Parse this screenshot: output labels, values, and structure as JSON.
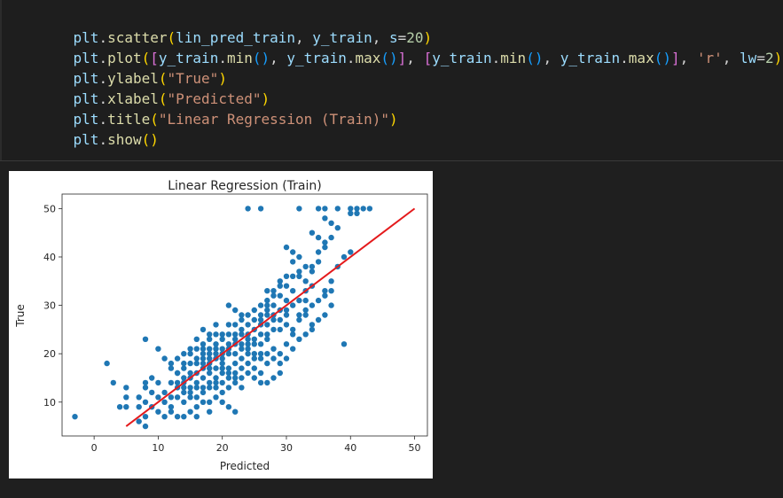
{
  "code_cell": {
    "lines": [
      "plt.scatter(lin_pred_train, y_train, s=20)",
      "plt.plot([y_train.min(), y_train.max()], [y_train.min(), y_train.max()], 'r', lw=2)",
      "plt.ylabel(\"True\")",
      "plt.xlabel(\"Predicted\")",
      "plt.title(\"Linear Regression (Train)\")",
      "plt.show()"
    ]
  },
  "chart_data": {
    "type": "scatter",
    "title": "Linear Regression (Train)",
    "xlabel": "Predicted",
    "ylabel": "True",
    "xlim": [
      -5,
      52
    ],
    "ylim": [
      3,
      53
    ],
    "xticks": [
      0,
      10,
      20,
      30,
      40,
      50
    ],
    "yticks": [
      10,
      20,
      30,
      40,
      50
    ],
    "grid": false,
    "series": [
      {
        "marker_color": "#1f77b4",
        "points": [
          [
            24,
            50
          ],
          [
            26,
            50
          ],
          [
            32,
            50
          ],
          [
            35,
            50
          ],
          [
            36,
            50
          ],
          [
            38,
            50
          ],
          [
            40,
            50
          ],
          [
            41,
            50
          ],
          [
            42,
            50
          ],
          [
            43,
            50
          ],
          [
            40,
            49
          ],
          [
            41,
            49
          ],
          [
            36,
            48
          ],
          [
            37,
            47
          ],
          [
            38,
            46
          ],
          [
            34,
            45
          ],
          [
            35,
            44
          ],
          [
            36,
            43
          ],
          [
            37,
            44
          ],
          [
            36,
            42
          ],
          [
            30,
            42
          ],
          [
            31,
            41
          ],
          [
            32,
            40
          ],
          [
            35,
            39
          ],
          [
            33,
            38
          ],
          [
            34,
            37
          ],
          [
            32,
            36
          ],
          [
            33,
            35
          ],
          [
            34,
            34
          ],
          [
            36,
            33
          ],
          [
            37,
            33
          ],
          [
            29,
            35
          ],
          [
            30,
            34
          ],
          [
            31,
            33
          ],
          [
            28,
            33
          ],
          [
            29,
            32
          ],
          [
            30,
            31
          ],
          [
            31,
            30
          ],
          [
            32,
            31
          ],
          [
            33,
            31
          ],
          [
            34,
            30
          ],
          [
            33,
            29
          ],
          [
            32,
            28
          ],
          [
            30,
            29
          ],
          [
            28,
            30
          ],
          [
            27,
            31
          ],
          [
            26,
            30
          ],
          [
            25,
            29
          ],
          [
            24,
            28
          ],
          [
            23,
            27
          ],
          [
            22,
            26
          ],
          [
            26,
            28
          ],
          [
            27,
            28
          ],
          [
            28,
            27
          ],
          [
            29,
            27
          ],
          [
            30,
            26
          ],
          [
            31,
            25
          ],
          [
            29,
            25
          ],
          [
            28,
            25
          ],
          [
            27,
            24
          ],
          [
            26,
            24
          ],
          [
            25,
            25
          ],
          [
            24,
            24
          ],
          [
            23,
            24
          ],
          [
            22,
            23
          ],
          [
            21,
            22
          ],
          [
            20,
            23
          ],
          [
            19,
            22
          ],
          [
            18,
            23
          ],
          [
            17,
            22
          ],
          [
            16,
            23
          ],
          [
            15,
            21
          ],
          [
            17,
            20
          ],
          [
            18,
            20
          ],
          [
            19,
            19
          ],
          [
            20,
            21
          ],
          [
            21,
            20
          ],
          [
            22,
            20
          ],
          [
            23,
            21
          ],
          [
            24,
            22
          ],
          [
            25,
            22
          ],
          [
            26,
            22
          ],
          [
            27,
            23
          ],
          [
            28,
            21
          ],
          [
            29,
            20
          ],
          [
            30,
            22
          ],
          [
            31,
            24
          ],
          [
            26,
            20
          ],
          [
            25,
            19
          ],
          [
            24,
            20
          ],
          [
            23,
            19
          ],
          [
            22,
            18
          ],
          [
            21,
            17
          ],
          [
            20,
            18
          ],
          [
            19,
            17
          ],
          [
            18,
            16
          ],
          [
            17,
            15
          ],
          [
            16,
            14
          ],
          [
            15,
            13
          ],
          [
            14,
            12
          ],
          [
            13,
            11
          ],
          [
            14,
            14
          ],
          [
            15,
            16
          ],
          [
            16,
            18
          ],
          [
            17,
            17
          ],
          [
            18,
            18
          ],
          [
            19,
            15
          ],
          [
            20,
            14
          ],
          [
            21,
            15
          ],
          [
            22,
            16
          ],
          [
            23,
            17
          ],
          [
            24,
            18
          ],
          [
            25,
            17
          ],
          [
            26,
            16
          ],
          [
            27,
            18
          ],
          [
            28,
            15
          ],
          [
            29,
            16
          ],
          [
            20,
            20
          ],
          [
            19,
            21
          ],
          [
            18,
            21
          ],
          [
            17,
            19
          ],
          [
            16,
            19
          ],
          [
            15,
            18
          ],
          [
            14,
            17
          ],
          [
            13,
            16
          ],
          [
            12,
            18
          ],
          [
            13,
            19
          ],
          [
            14,
            20
          ],
          [
            15,
            20
          ],
          [
            16,
            21
          ],
          [
            17,
            21
          ],
          [
            18,
            19
          ],
          [
            20,
            16
          ],
          [
            21,
            13
          ],
          [
            22,
            14
          ],
          [
            23,
            13
          ],
          [
            20,
            12
          ],
          [
            19,
            11
          ],
          [
            18,
            10
          ],
          [
            17,
            10
          ],
          [
            16,
            9
          ],
          [
            15,
            8
          ],
          [
            14,
            7
          ],
          [
            12,
            9
          ],
          [
            11,
            10
          ],
          [
            10,
            11
          ],
          [
            9,
            12
          ],
          [
            8,
            13
          ],
          [
            7,
            11
          ],
          [
            8,
            10
          ],
          [
            9,
            9
          ],
          [
            10,
            8
          ],
          [
            11,
            7
          ],
          [
            12,
            11
          ],
          [
            13,
            13
          ],
          [
            14,
            10
          ],
          [
            15,
            11
          ],
          [
            16,
            11
          ],
          [
            17,
            12
          ],
          [
            18,
            13
          ],
          [
            19,
            13
          ],
          [
            20,
            10
          ],
          [
            21,
            9
          ],
          [
            22,
            8
          ],
          [
            18,
            8
          ],
          [
            16,
            7
          ],
          [
            13,
            7
          ],
          [
            12,
            8
          ],
          [
            11,
            12
          ],
          [
            10,
            14
          ],
          [
            9,
            15
          ],
          [
            8,
            14
          ],
          [
            7,
            9
          ],
          [
            8,
            7
          ],
          [
            7,
            6
          ],
          [
            8,
            5
          ],
          [
            5,
            9
          ],
          [
            5,
            11
          ],
          [
            5,
            13
          ],
          [
            4,
            9
          ],
          [
            3,
            14
          ],
          [
            2,
            18
          ],
          [
            -3,
            7
          ],
          [
            8,
            23
          ],
          [
            10,
            21
          ],
          [
            11,
            19
          ],
          [
            12,
            17
          ],
          [
            13,
            16
          ],
          [
            14,
            18
          ],
          [
            19,
            26
          ],
          [
            21,
            26
          ],
          [
            23,
            25
          ],
          [
            39,
            22
          ],
          [
            34,
            26
          ],
          [
            33,
            28
          ],
          [
            32,
            27
          ],
          [
            35,
            31
          ],
          [
            36,
            32
          ],
          [
            37,
            35
          ],
          [
            38,
            38
          ],
          [
            39,
            40
          ],
          [
            40,
            41
          ],
          [
            35,
            41
          ],
          [
            34,
            38
          ],
          [
            27,
            30
          ],
          [
            28,
            32
          ],
          [
            29,
            34
          ],
          [
            30,
            36
          ],
          [
            31,
            39
          ],
          [
            26,
            27
          ],
          [
            27,
            26
          ],
          [
            25,
            23
          ],
          [
            24,
            23
          ],
          [
            23,
            22
          ],
          [
            22,
            22
          ],
          [
            21,
            21
          ],
          [
            20,
            19
          ],
          [
            19,
            20
          ],
          [
            18,
            17
          ],
          [
            17,
            18
          ],
          [
            16,
            16
          ],
          [
            15,
            15
          ],
          [
            14,
            15
          ],
          [
            13,
            14
          ],
          [
            12,
            14
          ],
          [
            24,
            26
          ],
          [
            25,
            27
          ],
          [
            26,
            26
          ],
          [
            23,
            28
          ],
          [
            22,
            29
          ],
          [
            21,
            30
          ],
          [
            27,
            33
          ],
          [
            31,
            36
          ],
          [
            32,
            37
          ],
          [
            33,
            33
          ],
          [
            30,
            28
          ],
          [
            29,
            29
          ],
          [
            28,
            28
          ],
          [
            27,
            29
          ],
          [
            24,
            21
          ],
          [
            25,
            20
          ],
          [
            26,
            19
          ],
          [
            27,
            20
          ],
          [
            28,
            19
          ],
          [
            29,
            18
          ],
          [
            30,
            19
          ],
          [
            31,
            21
          ],
          [
            32,
            23
          ],
          [
            33,
            24
          ],
          [
            34,
            25
          ],
          [
            35,
            27
          ],
          [
            36,
            28
          ],
          [
            37,
            30
          ],
          [
            22,
            24
          ],
          [
            21,
            24
          ],
          [
            20,
            24
          ],
          [
            19,
            24
          ],
          [
            18,
            24
          ],
          [
            17,
            25
          ],
          [
            20,
            17
          ],
          [
            21,
            16
          ],
          [
            22,
            15
          ],
          [
            23,
            15
          ],
          [
            24,
            16
          ],
          [
            25,
            15
          ],
          [
            26,
            14
          ],
          [
            27,
            14
          ],
          [
            19,
            14
          ],
          [
            18,
            14
          ],
          [
            17,
            13
          ],
          [
            16,
            13
          ],
          [
            15,
            12
          ],
          [
            14,
            13
          ]
        ]
      },
      {
        "type": "line",
        "line_color": "#e41a1c",
        "x": [
          5,
          50
        ],
        "y": [
          5,
          50
        ]
      }
    ]
  }
}
